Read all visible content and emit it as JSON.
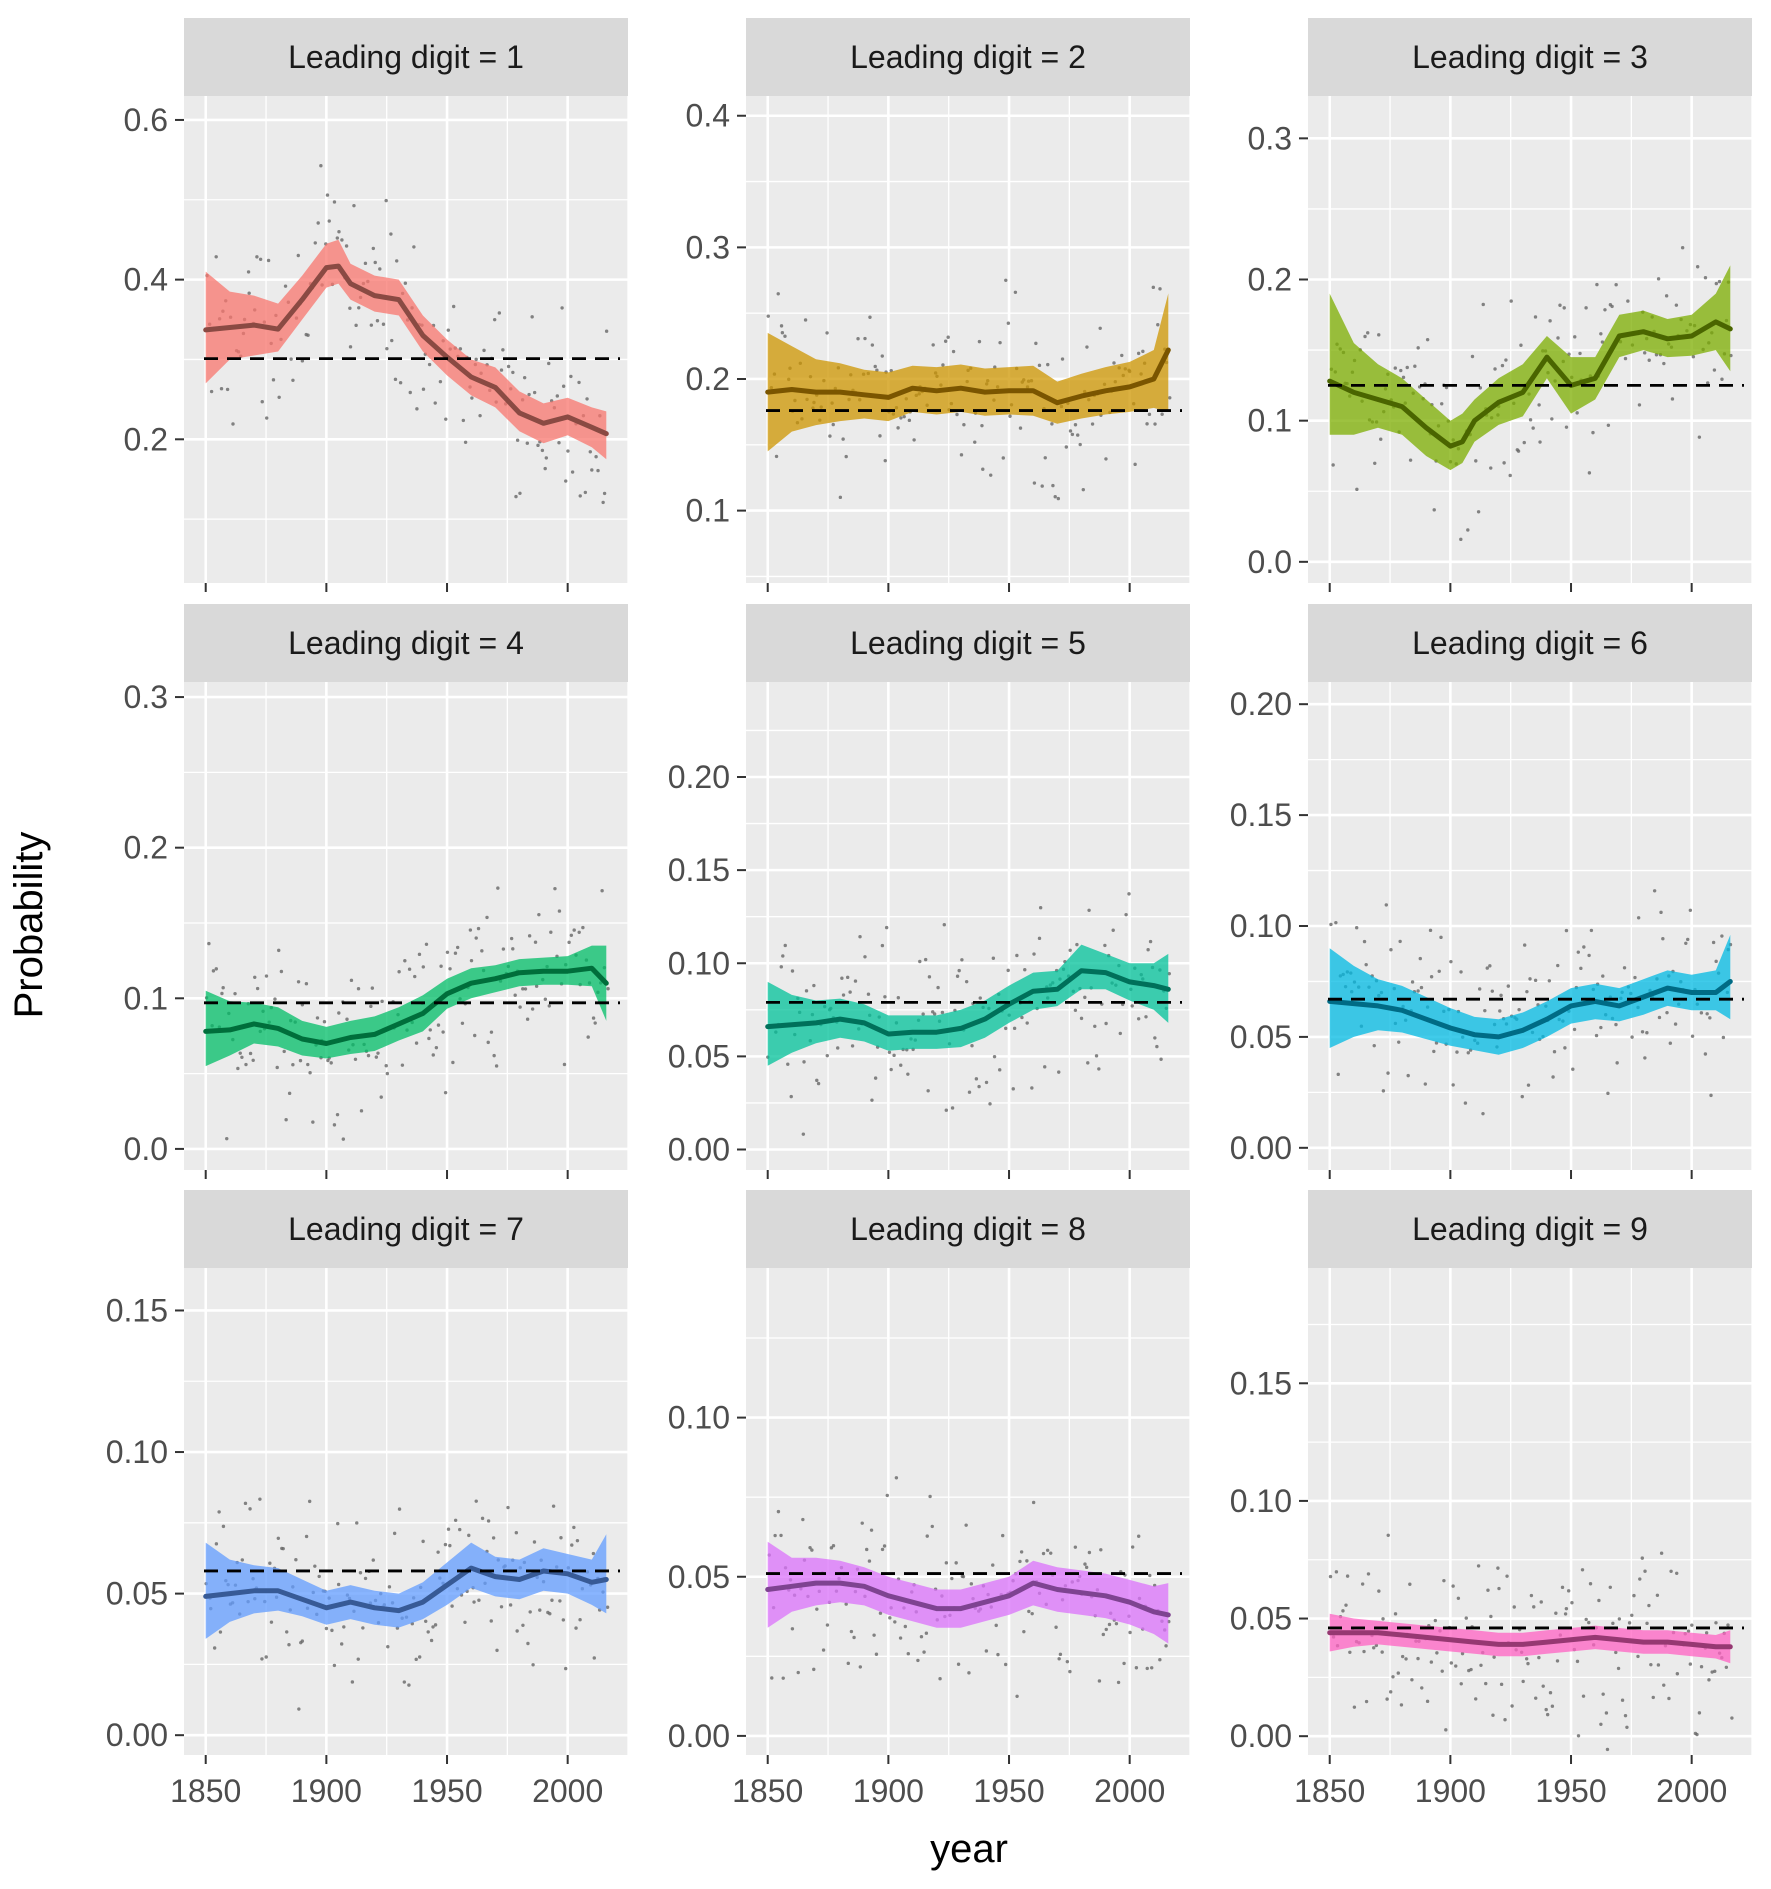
{
  "chart_data": {
    "type": "line",
    "facet_label_prefix": "Leading digit  = ",
    "xlabel": "year",
    "ylabel": "Probability",
    "x_ticks": [
      1850,
      1900,
      1950,
      2000
    ],
    "xlim": [
      1841,
      2025
    ],
    "colors": {
      "panel_bg": "#ebebeb",
      "grid": "#ffffff",
      "strip_bg": "#d9d9d9",
      "points": "#666666",
      "reference_line": "#000000"
    },
    "facets": [
      {
        "digit": "1",
        "fill": "#f8766d",
        "line": "#8a4a43",
        "ylim": [
          0.02,
          0.63
        ],
        "y_ticks": [
          0.2,
          0.4,
          0.6
        ],
        "y_tick_labels": [
          "0.2",
          "0.4",
          "0.6"
        ],
        "benford": 0.301,
        "smooth": {
          "x": [
            1850,
            1860,
            1870,
            1880,
            1890,
            1900,
            1905,
            1910,
            1920,
            1930,
            1940,
            1950,
            1960,
            1970,
            1980,
            1990,
            2000,
            2010,
            2016
          ],
          "y": [
            0.337,
            0.34,
            0.343,
            0.338,
            0.375,
            0.415,
            0.417,
            0.395,
            0.38,
            0.375,
            0.33,
            0.303,
            0.278,
            0.265,
            0.233,
            0.22,
            0.228,
            0.215,
            0.207
          ],
          "lo": [
            0.27,
            0.3,
            0.305,
            0.31,
            0.35,
            0.39,
            0.395,
            0.375,
            0.36,
            0.355,
            0.31,
            0.28,
            0.255,
            0.24,
            0.21,
            0.195,
            0.205,
            0.19,
            0.175
          ],
          "hi": [
            0.41,
            0.385,
            0.38,
            0.37,
            0.405,
            0.445,
            0.45,
            0.42,
            0.405,
            0.4,
            0.355,
            0.325,
            0.3,
            0.29,
            0.26,
            0.245,
            0.252,
            0.24,
            0.235
          ]
        }
      },
      {
        "digit": "2",
        "fill": "#cd9600",
        "line": "#7a5500",
        "ylim": [
          0.045,
          0.415
        ],
        "y_ticks": [
          0.1,
          0.2,
          0.3,
          0.4
        ],
        "y_tick_labels": [
          "0.1",
          "0.2",
          "0.3",
          "0.4"
        ],
        "benford": 0.176,
        "smooth": {
          "x": [
            1850,
            1860,
            1870,
            1880,
            1890,
            1900,
            1910,
            1920,
            1930,
            1940,
            1950,
            1960,
            1970,
            1980,
            1990,
            2000,
            2010,
            2016
          ],
          "y": [
            0.19,
            0.192,
            0.19,
            0.19,
            0.188,
            0.186,
            0.193,
            0.191,
            0.193,
            0.19,
            0.191,
            0.191,
            0.182,
            0.187,
            0.191,
            0.194,
            0.2,
            0.222
          ],
          "lo": [
            0.145,
            0.16,
            0.165,
            0.168,
            0.17,
            0.168,
            0.175,
            0.173,
            0.175,
            0.172,
            0.173,
            0.172,
            0.166,
            0.17,
            0.173,
            0.175,
            0.178,
            0.175
          ],
          "hi": [
            0.235,
            0.225,
            0.215,
            0.212,
            0.207,
            0.205,
            0.21,
            0.209,
            0.211,
            0.208,
            0.209,
            0.21,
            0.198,
            0.204,
            0.209,
            0.213,
            0.222,
            0.265
          ]
        }
      },
      {
        "digit": "3",
        "fill": "#7cae00",
        "line": "#4a6500",
        "ylim": [
          -0.015,
          0.33
        ],
        "y_ticks": [
          0.0,
          0.1,
          0.2,
          0.3
        ],
        "y_tick_labels": [
          "0.0",
          "0.1",
          "0.2",
          "0.3"
        ],
        "benford": 0.125,
        "smooth": {
          "x": [
            1850,
            1860,
            1870,
            1880,
            1890,
            1900,
            1905,
            1910,
            1920,
            1930,
            1940,
            1950,
            1960,
            1970,
            1980,
            1990,
            2000,
            2010,
            2016
          ],
          "y": [
            0.128,
            0.12,
            0.115,
            0.11,
            0.095,
            0.082,
            0.085,
            0.1,
            0.113,
            0.12,
            0.145,
            0.125,
            0.13,
            0.16,
            0.163,
            0.158,
            0.16,
            0.17,
            0.165
          ],
          "lo": [
            0.09,
            0.09,
            0.095,
            0.09,
            0.075,
            0.065,
            0.07,
            0.085,
            0.097,
            0.103,
            0.13,
            0.105,
            0.115,
            0.145,
            0.15,
            0.145,
            0.146,
            0.15,
            0.135
          ],
          "hi": [
            0.19,
            0.155,
            0.14,
            0.13,
            0.115,
            0.1,
            0.105,
            0.115,
            0.13,
            0.14,
            0.16,
            0.145,
            0.145,
            0.175,
            0.178,
            0.172,
            0.175,
            0.19,
            0.21
          ]
        }
      },
      {
        "digit": "4",
        "fill": "#00be67",
        "line": "#006e3b",
        "ylim": [
          -0.014,
          0.31
        ],
        "y_ticks": [
          0.0,
          0.1,
          0.2,
          0.3
        ],
        "y_tick_labels": [
          "0.0",
          "0.1",
          "0.2",
          "0.3"
        ],
        "benford": 0.097,
        "smooth": {
          "x": [
            1850,
            1860,
            1870,
            1880,
            1890,
            1900,
            1910,
            1920,
            1930,
            1940,
            1950,
            1960,
            1970,
            1980,
            1990,
            2000,
            2010,
            2016
          ],
          "y": [
            0.078,
            0.079,
            0.083,
            0.08,
            0.073,
            0.07,
            0.074,
            0.076,
            0.083,
            0.09,
            0.103,
            0.11,
            0.113,
            0.117,
            0.118,
            0.118,
            0.12,
            0.11
          ],
          "lo": [
            0.055,
            0.062,
            0.07,
            0.068,
            0.062,
            0.06,
            0.063,
            0.065,
            0.072,
            0.078,
            0.093,
            0.1,
            0.104,
            0.108,
            0.109,
            0.109,
            0.108,
            0.085
          ],
          "hi": [
            0.105,
            0.098,
            0.097,
            0.094,
            0.085,
            0.081,
            0.085,
            0.088,
            0.094,
            0.102,
            0.113,
            0.12,
            0.122,
            0.126,
            0.127,
            0.128,
            0.135,
            0.135
          ]
        }
      },
      {
        "digit": "5",
        "fill": "#00c19a",
        "line": "#00705a",
        "ylim": [
          -0.011,
          0.251
        ],
        "y_ticks": [
          0.0,
          0.05,
          0.1,
          0.15,
          0.2
        ],
        "y_tick_labels": [
          "0.00",
          "0.05",
          "0.10",
          "0.15",
          "0.20"
        ],
        "benford": 0.079,
        "smooth": {
          "x": [
            1850,
            1860,
            1870,
            1880,
            1890,
            1900,
            1910,
            1920,
            1930,
            1940,
            1950,
            1960,
            1970,
            1980,
            1990,
            2000,
            2010,
            2016
          ],
          "y": [
            0.066,
            0.067,
            0.068,
            0.07,
            0.068,
            0.062,
            0.063,
            0.063,
            0.065,
            0.07,
            0.078,
            0.085,
            0.086,
            0.096,
            0.095,
            0.09,
            0.088,
            0.086
          ],
          "lo": [
            0.045,
            0.052,
            0.057,
            0.06,
            0.058,
            0.053,
            0.054,
            0.054,
            0.055,
            0.06,
            0.068,
            0.075,
            0.077,
            0.086,
            0.086,
            0.08,
            0.075,
            0.068
          ],
          "hi": [
            0.09,
            0.083,
            0.08,
            0.081,
            0.078,
            0.072,
            0.072,
            0.072,
            0.075,
            0.08,
            0.088,
            0.095,
            0.096,
            0.11,
            0.105,
            0.1,
            0.1,
            0.105
          ]
        }
      },
      {
        "digit": "6",
        "fill": "#00b9e3",
        "line": "#006b85",
        "ylim": [
          -0.01,
          0.21
        ],
        "y_ticks": [
          0.0,
          0.05,
          0.1,
          0.15,
          0.2
        ],
        "y_tick_labels": [
          "0.00",
          "0.05",
          "0.10",
          "0.15",
          "0.20"
        ],
        "benford": 0.067,
        "smooth": {
          "x": [
            1850,
            1860,
            1870,
            1880,
            1890,
            1900,
            1910,
            1920,
            1930,
            1940,
            1950,
            1960,
            1970,
            1980,
            1990,
            2000,
            2010,
            2016
          ],
          "y": [
            0.066,
            0.065,
            0.064,
            0.062,
            0.058,
            0.054,
            0.051,
            0.05,
            0.053,
            0.058,
            0.064,
            0.066,
            0.064,
            0.068,
            0.072,
            0.07,
            0.07,
            0.075
          ],
          "lo": [
            0.045,
            0.05,
            0.053,
            0.052,
            0.049,
            0.046,
            0.044,
            0.042,
            0.045,
            0.05,
            0.056,
            0.058,
            0.057,
            0.06,
            0.064,
            0.062,
            0.062,
            0.058
          ],
          "hi": [
            0.09,
            0.082,
            0.076,
            0.073,
            0.068,
            0.063,
            0.059,
            0.058,
            0.061,
            0.066,
            0.072,
            0.074,
            0.072,
            0.076,
            0.08,
            0.078,
            0.08,
            0.096
          ]
        }
      },
      {
        "digit": "7",
        "fill": "#619cff",
        "line": "#375a96",
        "ylim": [
          -0.007,
          0.165
        ],
        "y_ticks": [
          0.0,
          0.05,
          0.1,
          0.15
        ],
        "y_tick_labels": [
          "0.00",
          "0.05",
          "0.10",
          "0.15"
        ],
        "benford": 0.058,
        "smooth": {
          "x": [
            1850,
            1860,
            1870,
            1880,
            1890,
            1900,
            1910,
            1920,
            1930,
            1940,
            1950,
            1960,
            1970,
            1980,
            1990,
            2000,
            2010,
            2016
          ],
          "y": [
            0.049,
            0.05,
            0.051,
            0.051,
            0.048,
            0.045,
            0.047,
            0.045,
            0.044,
            0.047,
            0.053,
            0.059,
            0.056,
            0.055,
            0.058,
            0.057,
            0.054,
            0.055
          ],
          "lo": [
            0.034,
            0.04,
            0.043,
            0.044,
            0.042,
            0.039,
            0.041,
            0.039,
            0.038,
            0.041,
            0.046,
            0.052,
            0.049,
            0.048,
            0.051,
            0.05,
            0.046,
            0.043
          ],
          "hi": [
            0.068,
            0.062,
            0.06,
            0.059,
            0.055,
            0.051,
            0.053,
            0.051,
            0.05,
            0.054,
            0.061,
            0.068,
            0.063,
            0.062,
            0.066,
            0.064,
            0.062,
            0.071
          ]
        }
      },
      {
        "digit": "8",
        "fill": "#db72fb",
        "line": "#7e4391",
        "ylim": [
          -0.006,
          0.147
        ],
        "y_ticks": [
          0.0,
          0.05,
          0.1
        ],
        "y_tick_labels": [
          "0.00",
          "0.05",
          "0.10"
        ],
        "benford": 0.051,
        "smooth": {
          "x": [
            1850,
            1860,
            1870,
            1880,
            1890,
            1900,
            1910,
            1920,
            1930,
            1940,
            1950,
            1960,
            1970,
            1980,
            1990,
            2000,
            2010,
            2016
          ],
          "y": [
            0.046,
            0.047,
            0.048,
            0.048,
            0.047,
            0.044,
            0.042,
            0.04,
            0.04,
            0.042,
            0.044,
            0.048,
            0.046,
            0.045,
            0.044,
            0.042,
            0.039,
            0.038
          ],
          "lo": [
            0.034,
            0.039,
            0.041,
            0.042,
            0.041,
            0.038,
            0.036,
            0.034,
            0.034,
            0.036,
            0.038,
            0.041,
            0.039,
            0.038,
            0.037,
            0.035,
            0.032,
            0.029
          ],
          "hi": [
            0.061,
            0.056,
            0.056,
            0.055,
            0.053,
            0.05,
            0.048,
            0.046,
            0.046,
            0.048,
            0.05,
            0.055,
            0.053,
            0.052,
            0.051,
            0.049,
            0.047,
            0.048
          ]
        }
      },
      {
        "digit": "9",
        "fill": "#ff61c3",
        "line": "#963872",
        "ylim": [
          -0.008,
          0.199
        ],
        "y_ticks": [
          0.0,
          0.05,
          0.1,
          0.15
        ],
        "y_tick_labels": [
          "0.00",
          "0.05",
          "0.10",
          "0.15"
        ],
        "benford": 0.046,
        "smooth": {
          "x": [
            1850,
            1860,
            1870,
            1880,
            1890,
            1900,
            1910,
            1920,
            1930,
            1940,
            1950,
            1960,
            1970,
            1980,
            1990,
            2000,
            2010,
            2016
          ],
          "y": [
            0.044,
            0.044,
            0.044,
            0.043,
            0.042,
            0.041,
            0.04,
            0.039,
            0.039,
            0.04,
            0.041,
            0.042,
            0.041,
            0.04,
            0.04,
            0.039,
            0.038,
            0.038
          ],
          "lo": [
            0.036,
            0.038,
            0.039,
            0.038,
            0.037,
            0.036,
            0.035,
            0.034,
            0.034,
            0.035,
            0.036,
            0.037,
            0.036,
            0.035,
            0.035,
            0.034,
            0.033,
            0.031
          ],
          "hi": [
            0.052,
            0.05,
            0.049,
            0.048,
            0.047,
            0.046,
            0.045,
            0.044,
            0.044,
            0.045,
            0.046,
            0.047,
            0.046,
            0.045,
            0.045,
            0.044,
            0.043,
            0.045
          ]
        }
      }
    ]
  }
}
